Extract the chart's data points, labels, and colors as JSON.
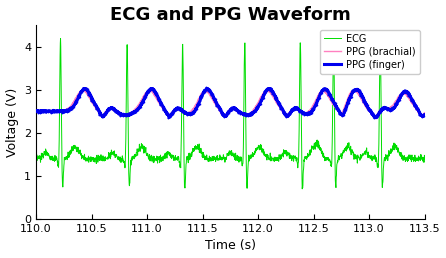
{
  "title": "ECG and PPG Waveform",
  "xlabel": "Time (s)",
  "ylabel": "Voltage (V)",
  "xlim": [
    110,
    113.5
  ],
  "ylim": [
    0,
    4.5
  ],
  "yticks": [
    0,
    1,
    2,
    3,
    4
  ],
  "xticks": [
    110,
    110.5,
    111,
    111.5,
    112,
    112.5,
    113,
    113.5
  ],
  "ecg_color": "#00dd00",
  "ppg_brachial_color": "#ff80c0",
  "ppg_finger_color": "#0000ee",
  "legend_labels": [
    "ECG",
    "PPG (brachial)",
    "PPG (finger)"
  ],
  "title_fontsize": 13,
  "axis_fontsize": 9,
  "tick_fontsize": 8,
  "background_color": "#ffffff",
  "heartbeat_times": [
    110.22,
    110.82,
    111.32,
    111.88,
    112.38,
    112.68,
    113.1
  ],
  "ecg_baseline": 1.4,
  "ppg_baseline": 2.5,
  "ppg_brachial_delay": 0.2,
  "ppg_finger_delay": 0.22
}
